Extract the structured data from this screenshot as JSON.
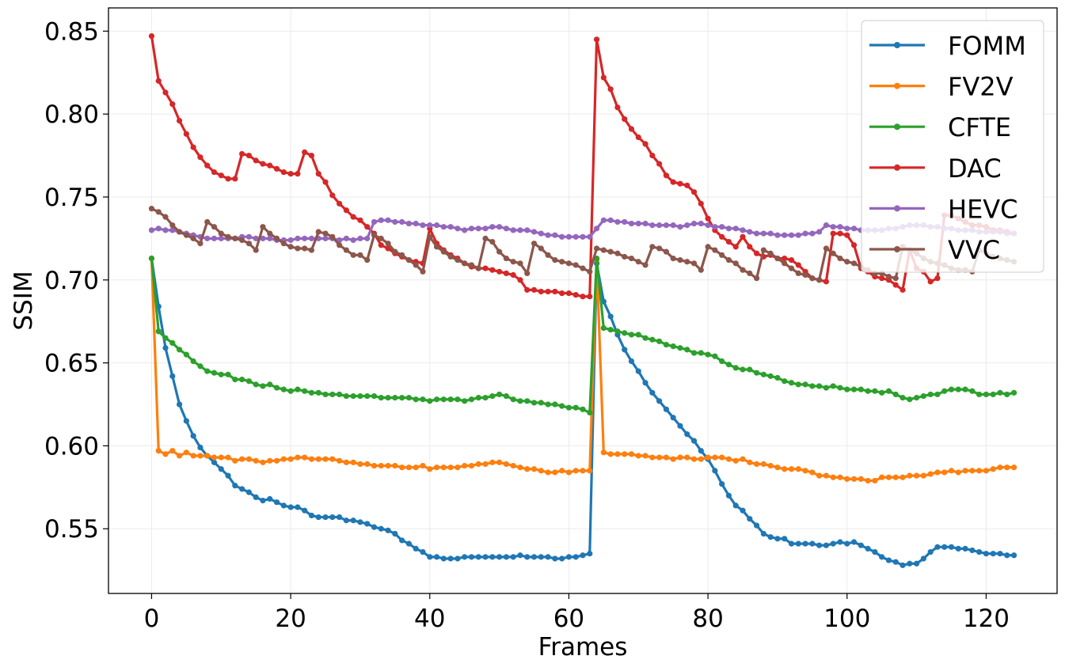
{
  "chart_data": {
    "type": "line",
    "title": "",
    "xlabel": "Frames",
    "ylabel": "SSIM",
    "xlim": [
      -6.2,
      130.2
    ],
    "ylim": [
      0.511,
      0.864
    ],
    "xticks": [
      0,
      20,
      40,
      60,
      80,
      100,
      120
    ],
    "yticks": [
      0.55,
      0.6,
      0.65,
      0.7,
      0.75,
      0.8,
      0.85
    ],
    "ytick_labels": [
      "0.55",
      "0.60",
      "0.65",
      "0.70",
      "0.75",
      "0.80",
      "0.85"
    ],
    "grid": true,
    "legend_position": "top-right",
    "x": [
      0,
      1,
      2,
      3,
      4,
      5,
      6,
      7,
      8,
      9,
      10,
      11,
      12,
      13,
      14,
      15,
      16,
      17,
      18,
      19,
      20,
      21,
      22,
      23,
      24,
      25,
      26,
      27,
      28,
      29,
      30,
      31,
      32,
      33,
      34,
      35,
      36,
      37,
      38,
      39,
      40,
      41,
      42,
      43,
      44,
      45,
      46,
      47,
      48,
      49,
      50,
      51,
      52,
      53,
      54,
      55,
      56,
      57,
      58,
      59,
      60,
      61,
      62,
      63,
      64,
      65,
      66,
      67,
      68,
      69,
      70,
      71,
      72,
      73,
      74,
      75,
      76,
      77,
      78,
      79,
      80,
      81,
      82,
      83,
      84,
      85,
      86,
      87,
      88,
      89,
      90,
      91,
      92,
      93,
      94,
      95,
      96,
      97,
      98,
      99,
      100,
      101,
      102,
      103,
      104,
      105,
      106,
      107,
      108,
      109,
      110,
      111,
      112,
      113,
      114,
      115,
      116,
      117,
      118,
      119,
      120,
      121,
      122,
      123,
      124
    ],
    "series": [
      {
        "name": "FOMM",
        "color": "#1f77b4",
        "values": [
          0.713,
          0.684,
          0.659,
          0.642,
          0.625,
          0.615,
          0.606,
          0.599,
          0.594,
          0.59,
          0.586,
          0.582,
          0.576,
          0.574,
          0.572,
          0.569,
          0.567,
          0.568,
          0.566,
          0.564,
          0.563,
          0.563,
          0.561,
          0.558,
          0.557,
          0.557,
          0.557,
          0.557,
          0.555,
          0.555,
          0.554,
          0.553,
          0.551,
          0.55,
          0.549,
          0.547,
          0.543,
          0.541,
          0.538,
          0.536,
          0.533,
          0.533,
          0.532,
          0.532,
          0.532,
          0.533,
          0.533,
          0.533,
          0.533,
          0.533,
          0.533,
          0.533,
          0.533,
          0.534,
          0.533,
          0.533,
          0.533,
          0.533,
          0.532,
          0.532,
          0.533,
          0.533,
          0.534,
          0.535,
          0.71,
          0.687,
          0.678,
          0.667,
          0.658,
          0.651,
          0.645,
          0.638,
          0.632,
          0.627,
          0.622,
          0.617,
          0.612,
          0.607,
          0.603,
          0.597,
          0.592,
          0.585,
          0.577,
          0.57,
          0.564,
          0.561,
          0.556,
          0.552,
          0.547,
          0.545,
          0.544,
          0.544,
          0.541,
          0.541,
          0.541,
          0.541,
          0.54,
          0.54,
          0.541,
          0.542,
          0.541,
          0.542,
          0.54,
          0.538,
          0.536,
          0.533,
          0.531,
          0.53,
          0.528,
          0.529,
          0.529,
          0.532,
          0.536,
          0.539,
          0.539,
          0.539,
          0.538,
          0.538,
          0.537,
          0.536,
          0.535,
          0.535,
          0.535,
          0.534,
          0.534
        ]
      },
      {
        "name": "FV2V",
        "color": "#ff7f0e",
        "values": [
          0.713,
          0.597,
          0.595,
          0.597,
          0.594,
          0.596,
          0.594,
          0.594,
          0.594,
          0.593,
          0.593,
          0.593,
          0.591,
          0.592,
          0.592,
          0.591,
          0.59,
          0.591,
          0.591,
          0.592,
          0.592,
          0.593,
          0.593,
          0.592,
          0.592,
          0.592,
          0.592,
          0.591,
          0.59,
          0.59,
          0.589,
          0.589,
          0.588,
          0.588,
          0.588,
          0.588,
          0.587,
          0.587,
          0.587,
          0.588,
          0.586,
          0.587,
          0.587,
          0.587,
          0.587,
          0.588,
          0.588,
          0.589,
          0.589,
          0.59,
          0.59,
          0.589,
          0.588,
          0.587,
          0.586,
          0.586,
          0.585,
          0.584,
          0.584,
          0.585,
          0.584,
          0.585,
          0.585,
          0.585,
          0.712,
          0.596,
          0.595,
          0.595,
          0.595,
          0.595,
          0.594,
          0.594,
          0.593,
          0.593,
          0.593,
          0.592,
          0.593,
          0.593,
          0.592,
          0.592,
          0.593,
          0.593,
          0.593,
          0.592,
          0.591,
          0.592,
          0.59,
          0.589,
          0.589,
          0.588,
          0.587,
          0.586,
          0.586,
          0.586,
          0.585,
          0.584,
          0.582,
          0.582,
          0.581,
          0.581,
          0.58,
          0.58,
          0.58,
          0.579,
          0.579,
          0.581,
          0.581,
          0.581,
          0.581,
          0.582,
          0.582,
          0.582,
          0.583,
          0.584,
          0.584,
          0.585,
          0.584,
          0.585,
          0.585,
          0.585,
          0.585,
          0.586,
          0.587,
          0.587,
          0.587
        ]
      },
      {
        "name": "CFTE",
        "color": "#2ca02c",
        "values": [
          0.713,
          0.669,
          0.665,
          0.662,
          0.658,
          0.655,
          0.651,
          0.648,
          0.645,
          0.644,
          0.643,
          0.643,
          0.64,
          0.64,
          0.639,
          0.637,
          0.636,
          0.637,
          0.635,
          0.634,
          0.633,
          0.634,
          0.633,
          0.632,
          0.632,
          0.631,
          0.631,
          0.631,
          0.63,
          0.63,
          0.63,
          0.63,
          0.63,
          0.629,
          0.629,
          0.629,
          0.629,
          0.629,
          0.628,
          0.628,
          0.627,
          0.628,
          0.628,
          0.628,
          0.628,
          0.627,
          0.628,
          0.629,
          0.629,
          0.63,
          0.631,
          0.63,
          0.628,
          0.627,
          0.627,
          0.626,
          0.626,
          0.625,
          0.625,
          0.624,
          0.623,
          0.623,
          0.622,
          0.62,
          0.713,
          0.671,
          0.67,
          0.669,
          0.668,
          0.667,
          0.667,
          0.665,
          0.664,
          0.663,
          0.661,
          0.66,
          0.659,
          0.658,
          0.656,
          0.656,
          0.655,
          0.654,
          0.651,
          0.649,
          0.647,
          0.646,
          0.646,
          0.644,
          0.643,
          0.642,
          0.641,
          0.639,
          0.638,
          0.637,
          0.637,
          0.636,
          0.636,
          0.635,
          0.636,
          0.635,
          0.634,
          0.634,
          0.634,
          0.633,
          0.633,
          0.632,
          0.633,
          0.631,
          0.629,
          0.628,
          0.629,
          0.63,
          0.631,
          0.631,
          0.633,
          0.634,
          0.634,
          0.634,
          0.633,
          0.631,
          0.631,
          0.631,
          0.632,
          0.631,
          0.632
        ]
      },
      {
        "name": "DAC",
        "color": "#d62728",
        "values": [
          0.847,
          0.82,
          0.813,
          0.806,
          0.796,
          0.788,
          0.78,
          0.774,
          0.769,
          0.765,
          0.763,
          0.761,
          0.761,
          0.776,
          0.775,
          0.772,
          0.77,
          0.769,
          0.767,
          0.765,
          0.764,
          0.764,
          0.777,
          0.775,
          0.764,
          0.759,
          0.751,
          0.746,
          0.742,
          0.738,
          0.736,
          0.732,
          0.728,
          0.721,
          0.719,
          0.716,
          0.714,
          0.712,
          0.711,
          0.71,
          0.731,
          0.722,
          0.718,
          0.715,
          0.713,
          0.71,
          0.708,
          0.707,
          0.707,
          0.706,
          0.705,
          0.704,
          0.703,
          0.7,
          0.694,
          0.694,
          0.693,
          0.693,
          0.693,
          0.692,
          0.692,
          0.691,
          0.69,
          0.69,
          0.845,
          0.822,
          0.815,
          0.804,
          0.797,
          0.791,
          0.786,
          0.782,
          0.775,
          0.77,
          0.763,
          0.759,
          0.758,
          0.757,
          0.753,
          0.746,
          0.737,
          0.73,
          0.726,
          0.723,
          0.72,
          0.726,
          0.72,
          0.716,
          0.714,
          0.715,
          0.713,
          0.713,
          0.712,
          0.709,
          0.705,
          0.701,
          0.7,
          0.699,
          0.728,
          0.728,
          0.727,
          0.721,
          0.707,
          0.705,
          0.702,
          0.701,
          0.7,
          0.697,
          0.694,
          0.718,
          0.707,
          0.705,
          0.699,
          0.701,
          0.739,
          0.739,
          0.737,
          0.735,
          0.733,
          0.733,
          0.732,
          0.73,
          0.73,
          0.729,
          0.728
        ]
      },
      {
        "name": "HEVC",
        "color": "#9467bd",
        "values": [
          0.73,
          0.731,
          0.73,
          0.73,
          0.729,
          0.728,
          0.727,
          0.726,
          0.725,
          0.725,
          0.725,
          0.725,
          0.725,
          0.726,
          0.726,
          0.725,
          0.725,
          0.725,
          0.724,
          0.724,
          0.724,
          0.725,
          0.725,
          0.725,
          0.725,
          0.725,
          0.725,
          0.724,
          0.725,
          0.724,
          0.725,
          0.725,
          0.735,
          0.736,
          0.736,
          0.735,
          0.735,
          0.734,
          0.734,
          0.733,
          0.733,
          0.733,
          0.732,
          0.732,
          0.731,
          0.73,
          0.731,
          0.731,
          0.731,
          0.732,
          0.732,
          0.731,
          0.73,
          0.73,
          0.73,
          0.729,
          0.728,
          0.727,
          0.727,
          0.726,
          0.726,
          0.726,
          0.726,
          0.726,
          0.731,
          0.736,
          0.736,
          0.735,
          0.735,
          0.734,
          0.734,
          0.734,
          0.733,
          0.733,
          0.733,
          0.733,
          0.732,
          0.733,
          0.734,
          0.734,
          0.733,
          0.732,
          0.732,
          0.731,
          0.731,
          0.73,
          0.729,
          0.728,
          0.728,
          0.728,
          0.727,
          0.727,
          0.727,
          0.727,
          0.728,
          0.728,
          0.729,
          0.733,
          0.732,
          0.732,
          0.731,
          0.731,
          0.73,
          0.73,
          0.73,
          0.73,
          0.731,
          0.731,
          0.732,
          0.733,
          0.733,
          0.733,
          0.732,
          0.732,
          0.731,
          0.731,
          0.73,
          0.73,
          0.73,
          0.729,
          0.729,
          0.729,
          0.729,
          0.728,
          0.728
        ]
      },
      {
        "name": "VVC",
        "color": "#8c564b",
        "values": [
          0.743,
          0.741,
          0.738,
          0.733,
          0.729,
          0.727,
          0.725,
          0.722,
          0.735,
          0.732,
          0.728,
          0.726,
          0.725,
          0.724,
          0.722,
          0.718,
          0.732,
          0.728,
          0.725,
          0.722,
          0.72,
          0.719,
          0.719,
          0.718,
          0.729,
          0.728,
          0.726,
          0.721,
          0.718,
          0.715,
          0.715,
          0.712,
          0.727,
          0.725,
          0.722,
          0.717,
          0.715,
          0.712,
          0.709,
          0.705,
          0.726,
          0.72,
          0.717,
          0.714,
          0.712,
          0.71,
          0.709,
          0.707,
          0.725,
          0.723,
          0.717,
          0.713,
          0.711,
          0.71,
          0.704,
          0.722,
          0.719,
          0.715,
          0.712,
          0.711,
          0.71,
          0.709,
          0.707,
          0.705,
          0.719,
          0.718,
          0.717,
          0.716,
          0.714,
          0.713,
          0.711,
          0.709,
          0.72,
          0.719,
          0.717,
          0.713,
          0.712,
          0.711,
          0.71,
          0.706,
          0.72,
          0.718,
          0.715,
          0.712,
          0.71,
          0.706,
          0.704,
          0.701,
          0.718,
          0.716,
          0.713,
          0.71,
          0.707,
          0.704,
          0.703,
          0.701,
          0.7,
          0.719,
          0.716,
          0.713,
          0.711,
          0.71,
          0.708,
          0.706,
          0.704,
          0.704,
          0.702,
          0.701,
          0.72,
          0.718,
          0.716,
          0.713,
          0.711,
          0.71,
          0.709,
          0.707,
          0.706,
          0.706,
          0.705,
          0.718,
          0.716,
          0.714,
          0.713,
          0.712,
          0.711
        ]
      }
    ]
  }
}
